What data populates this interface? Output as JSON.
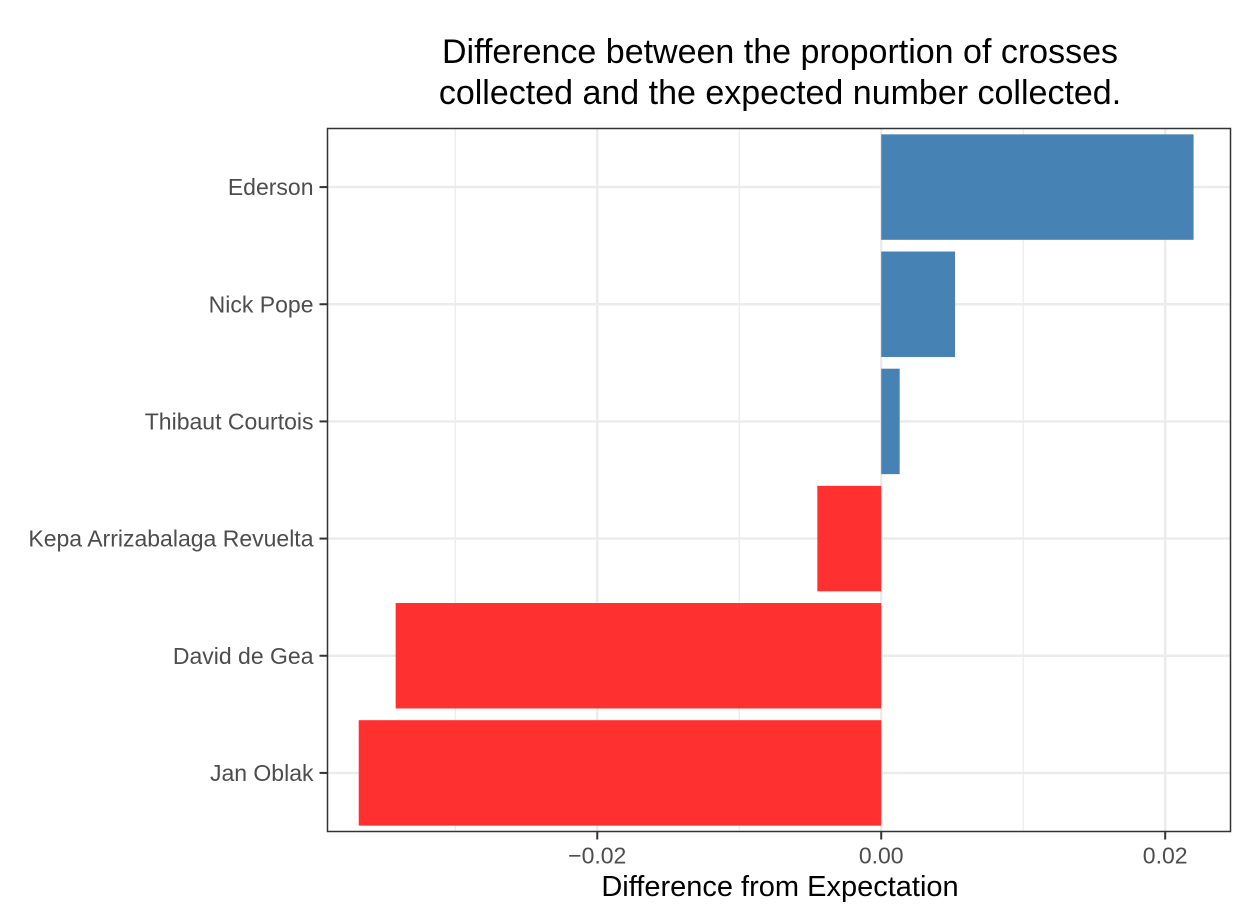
{
  "chart_data": {
    "type": "bar",
    "orientation": "horizontal",
    "title_lines": [
      "Difference between the proportion of crosses",
      "collected and the expected number collected."
    ],
    "xlabel": "Difference from Expectation",
    "ylabel": "",
    "categories": [
      "Ederson",
      "Nick Pope",
      "Thibaut Courtois",
      "Kepa Arrizabalaga Revuelta",
      "David de Gea",
      "Jan Oblak"
    ],
    "values": [
      0.022,
      0.0052,
      0.0013,
      -0.0045,
      -0.0342,
      -0.0368
    ],
    "bar_colors": [
      "#4682B4",
      "#4682B4",
      "#4682B4",
      "#FF3030",
      "#FF3030",
      "#FF3030"
    ],
    "xlim": [
      -0.039,
      0.0246
    ],
    "x_major_ticks": [
      -0.02,
      0.0,
      0.02
    ],
    "x_tick_labels": [
      "−0.02",
      "0.00",
      "0.02"
    ],
    "x_minor_ticks": [
      -0.03,
      -0.01,
      0.01
    ],
    "grid": true,
    "legend": "none",
    "colors": {
      "positive": "#4682B4",
      "negative": "#FF3030",
      "grid": "#EBEBEB",
      "panel_border": "#333333",
      "tick_label": "#4D4D4D"
    }
  }
}
